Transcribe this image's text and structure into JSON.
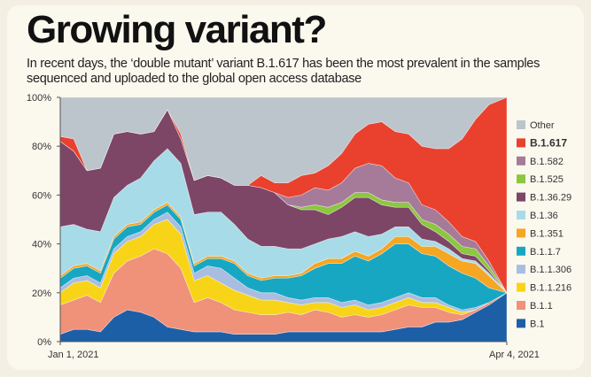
{
  "header": {
    "title": "Growing variant?",
    "subtitle": "In recent days, the ‘double mutant’ variant B.1.617 has been the most prevalent in the samples sequenced and uploaded to the global open access database"
  },
  "chart_data": {
    "type": "area",
    "stacked": true,
    "grid": false,
    "legend_position": "right",
    "ylim": [
      0,
      100
    ],
    "y_ticks": [
      "0%",
      "20%",
      "40%",
      "60%",
      "80%",
      "100%"
    ],
    "x_labels": [
      "Jan 1, 2021",
      "Apr 4, 2021"
    ],
    "x": [
      0,
      0.03,
      0.06,
      0.09,
      0.12,
      0.15,
      0.18,
      0.21,
      0.24,
      0.27,
      0.3,
      0.33,
      0.36,
      0.39,
      0.42,
      0.45,
      0.48,
      0.51,
      0.54,
      0.57,
      0.6,
      0.63,
      0.66,
      0.69,
      0.72,
      0.75,
      0.78,
      0.81,
      0.84,
      0.87,
      0.9,
      0.93,
      0.96,
      1.0
    ],
    "series": [
      {
        "name": "B.1",
        "color": "#1d5fa6",
        "values": [
          3,
          5,
          5,
          4,
          10,
          13,
          12,
          10,
          6,
          5,
          4,
          4,
          4,
          3,
          3,
          3,
          3,
          4,
          4,
          4,
          4,
          4,
          4,
          4,
          4,
          5,
          6,
          6,
          8,
          8,
          9,
          12,
          15,
          20
        ]
      },
      {
        "name": "B.1.1",
        "color": "#f0917a",
        "values": [
          12,
          12,
          14,
          12,
          18,
          20,
          23,
          28,
          30,
          25,
          12,
          14,
          12,
          10,
          9,
          8,
          8,
          8,
          7,
          9,
          8,
          6,
          7,
          6,
          7,
          8,
          9,
          8,
          6,
          4,
          2,
          1,
          1,
          0
        ]
      },
      {
        "name": "B.1.1.216",
        "color": "#f8d418",
        "values": [
          5,
          7,
          6,
          6,
          8,
          8,
          8,
          10,
          14,
          14,
          9,
          9,
          8,
          8,
          7,
          6,
          6,
          4,
          4,
          3,
          4,
          4,
          4,
          3,
          3,
          3,
          3,
          2,
          2,
          2,
          1,
          0,
          0,
          0
        ]
      },
      {
        "name": "B.1.1.306",
        "color": "#a9bde0",
        "values": [
          2,
          2,
          2,
          2,
          2,
          2,
          2,
          2,
          3,
          3,
          3,
          4,
          6,
          5,
          3,
          3,
          3,
          2,
          2,
          2,
          2,
          2,
          2,
          2,
          2,
          2,
          2,
          2,
          2,
          1,
          1,
          1,
          0,
          0
        ]
      },
      {
        "name": "B.1.1.7",
        "color": "#17a7c3",
        "values": [
          4,
          4,
          4,
          4,
          4,
          4,
          3,
          3,
          3,
          3,
          3,
          3,
          4,
          6,
          5,
          5,
          6,
          8,
          10,
          12,
          14,
          16,
          18,
          18,
          20,
          22,
          20,
          18,
          17,
          16,
          15,
          12,
          6,
          0
        ]
      },
      {
        "name": "B.1.351",
        "color": "#f5a623",
        "values": [
          1,
          1,
          1,
          1,
          1,
          1,
          1,
          1,
          1,
          1,
          1,
          1,
          1,
          1,
          1,
          1,
          1,
          1,
          1,
          2,
          2,
          2,
          2,
          2,
          2,
          3,
          3,
          3,
          4,
          5,
          5,
          6,
          5,
          0
        ]
      },
      {
        "name": "B.1.36",
        "color": "#a8dbe8",
        "values": [
          20,
          17,
          14,
          16,
          16,
          16,
          18,
          20,
          22,
          22,
          20,
          18,
          18,
          15,
          14,
          13,
          12,
          11,
          10,
          8,
          8,
          9,
          8,
          8,
          6,
          4,
          4,
          3,
          2,
          2,
          1,
          1,
          1,
          0
        ]
      },
      {
        "name": "B.1.36.29",
        "color": "#7d4566",
        "values": [
          35,
          30,
          24,
          26,
          26,
          22,
          18,
          12,
          16,
          10,
          14,
          15,
          14,
          16,
          22,
          24,
          22,
          18,
          16,
          14,
          10,
          12,
          14,
          16,
          12,
          8,
          8,
          6,
          4,
          3,
          2,
          2,
          1,
          0
        ]
      },
      {
        "name": "B.1.525",
        "color": "#8dc63f",
        "values": [
          0,
          0,
          0,
          0,
          0,
          0,
          0,
          0,
          0,
          0,
          0,
          0,
          0,
          0,
          0,
          0,
          0,
          0,
          1,
          2,
          3,
          2,
          2,
          2,
          2,
          2,
          2,
          2,
          3,
          3,
          3,
          3,
          2,
          0
        ]
      },
      {
        "name": "B.1.582",
        "color": "#a67a99",
        "values": [
          0,
          0,
          0,
          0,
          0,
          0,
          0,
          0,
          0,
          0,
          0,
          0,
          0,
          0,
          0,
          0,
          0,
          3,
          5,
          7,
          7,
          8,
          10,
          12,
          14,
          10,
          8,
          6,
          6,
          5,
          4,
          3,
          2,
          0
        ]
      },
      {
        "name": "B.1.617",
        "color": "#e9412d",
        "values": [
          2,
          5,
          0,
          0,
          0,
          0,
          0,
          0,
          0,
          2,
          0,
          0,
          0,
          0,
          0,
          5,
          4,
          6,
          8,
          6,
          10,
          12,
          14,
          16,
          18,
          19,
          20,
          24,
          25,
          30,
          40,
          50,
          64,
          80
        ]
      },
      {
        "name": "Other",
        "color": "#bcc4cc",
        "values": [
          16,
          17,
          30,
          29,
          15,
          14,
          15,
          14,
          5,
          15,
          34,
          32,
          33,
          36,
          36,
          32,
          35,
          35,
          32,
          31,
          28,
          23,
          15,
          11,
          10,
          14,
          15,
          20,
          21,
          21,
          17,
          9,
          3,
          0
        ]
      }
    ]
  }
}
